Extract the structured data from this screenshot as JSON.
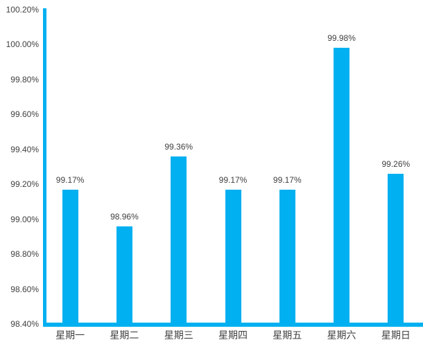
{
  "chart_data": {
    "type": "bar",
    "title": "",
    "xlabel": "",
    "ylabel": "",
    "categories": [
      "星期一",
      "星期二",
      "星期三",
      "星期四",
      "星期五",
      "星期六",
      "星期日"
    ],
    "values": [
      99.17,
      98.96,
      99.36,
      99.17,
      99.17,
      99.98,
      99.26
    ],
    "data_labels": [
      "99.17%",
      "98.96%",
      "99.36%",
      "99.17%",
      "99.17%",
      "99.98%",
      "99.26%"
    ],
    "ylim": [
      98.4,
      100.2
    ],
    "ytick_step": 0.2,
    "yticks": [
      "100.20%",
      "100.00%",
      "99.80%",
      "99.60%",
      "99.40%",
      "99.20%",
      "99.00%",
      "98.80%",
      "98.60%",
      "98.40%"
    ],
    "grid": false,
    "legend": null,
    "bar_color": "#00B0F0",
    "axis_color": "#00B0F0",
    "text_color": "#404040",
    "background_color": "#FFFFFF"
  }
}
